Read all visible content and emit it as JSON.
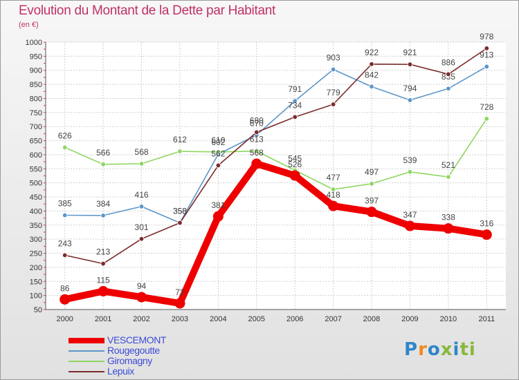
{
  "title": "Evolution du Montant de la Dette par Habitant",
  "subtitle": "(en €)",
  "brand": {
    "name": "Proxiti",
    "colors": [
      "#2f86c8",
      "#f08a1c",
      "#2f86c8",
      "#88b83c",
      "#2f86c8",
      "#88b83c",
      "#88b83c"
    ]
  },
  "chart_data": {
    "type": "line",
    "x": [
      "2000",
      "2001",
      "2002",
      "2003",
      "2004",
      "2005",
      "2006",
      "2007",
      "2008",
      "2009",
      "2010",
      "2011"
    ],
    "ylim": [
      50,
      1000
    ],
    "yticks": [
      50,
      100,
      150,
      200,
      250,
      300,
      350,
      400,
      450,
      500,
      550,
      600,
      650,
      700,
      750,
      800,
      850,
      900,
      950,
      1000
    ],
    "grid": true,
    "legend_position": "bottom-left",
    "series": [
      {
        "name": "VESCEMONT",
        "color": "#ee0000",
        "values": [
          86,
          115,
          94,
          72,
          381,
          568,
          526,
          418,
          397,
          347,
          338,
          316
        ]
      },
      {
        "name": "Rougegoutte",
        "color": "#5b96c8",
        "values": [
          385,
          384,
          416,
          358,
          602,
          670,
          791,
          903,
          842,
          794,
          835,
          913
        ]
      },
      {
        "name": "Giromagny",
        "color": "#8ed660",
        "values": [
          626,
          566,
          568,
          612,
          610,
          613,
          545,
          477,
          497,
          539,
          521,
          728
        ]
      },
      {
        "name": "Lepuix",
        "color": "#7a2b2b",
        "values": [
          243,
          213,
          301,
          358,
          562,
          680,
          734,
          779,
          922,
          921,
          886,
          978
        ]
      }
    ]
  }
}
